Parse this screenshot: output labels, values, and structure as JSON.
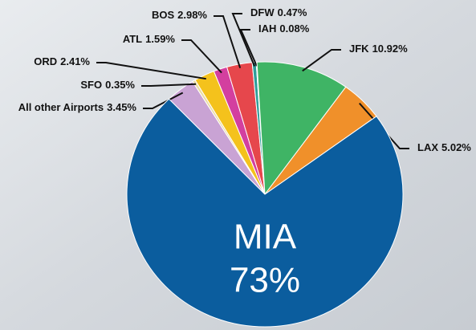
{
  "chart_data": {
    "type": "pie",
    "categories": [
      "All other Airports",
      "SFO",
      "ORD",
      "ATL",
      "BOS",
      "DFW",
      "IAH",
      "JFK",
      "LAX",
      "MIA"
    ],
    "values": [
      3.45,
      0.35,
      2.41,
      1.59,
      2.98,
      0.47,
      0.08,
      10.92,
      5.02,
      73
    ],
    "value_labels": [
      "3.45%",
      "0.35%",
      "2.41%",
      "1.59%",
      "2.98%",
      "0.47%",
      "0.08%",
      "10.92%",
      "5.02%",
      "73%"
    ],
    "colors": [
      "#c9a3d4",
      "#eadca6",
      "#f4c21c",
      "#d33f9f",
      "#e6474c",
      "#2f9e9a",
      "#86d3ea",
      "#3fb465",
      "#f0902a",
      "#0b5d9e"
    ]
  }
}
